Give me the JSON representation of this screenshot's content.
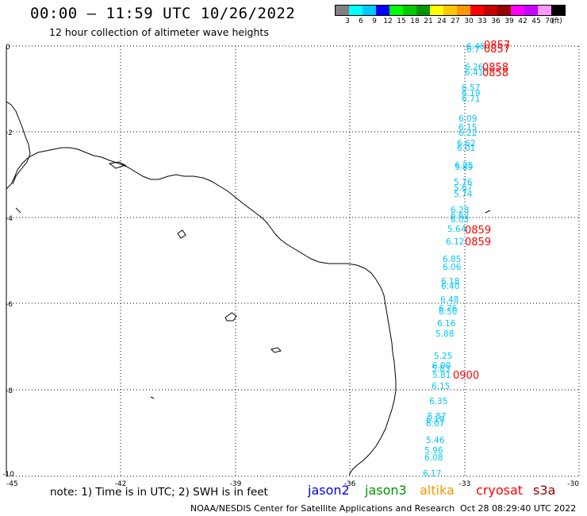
{
  "header": {
    "title": "00:00 – 11:59 UTC 10/26/2022",
    "subtitle": "12 hour collection of altimeter wave heights"
  },
  "legend": {
    "colors": [
      "#808080",
      "#00ffff",
      "#00c8ff",
      "#0000ff",
      "#00ff00",
      "#00c800",
      "#009600",
      "#ffff00",
      "#ffc800",
      "#ff9600",
      "#ff0000",
      "#c80000",
      "#960000",
      "#ff00ff",
      "#c800ff",
      "#ff96ff",
      "#000000"
    ],
    "labels": [
      "3",
      "6",
      "9",
      "12",
      "15",
      "18",
      "21",
      "24",
      "27",
      "30",
      "33",
      "36",
      "39",
      "42",
      "45",
      "70",
      "(ft)"
    ]
  },
  "axes": {
    "y_labels": [
      "0",
      "-2",
      "-4",
      "-6",
      "-8",
      "-10"
    ],
    "x_labels": [
      "-45",
      "-42",
      "-39",
      "-36",
      "-33",
      "-30"
    ]
  },
  "wave_heights": [
    {
      "value": "6.46",
      "color": "#00c8ff"
    },
    {
      "value": "6.7",
      "color": "#00c8ff"
    },
    {
      "value": "6.26",
      "color": "#00c8ff"
    },
    {
      "value": "6.41",
      "color": "#00c8ff"
    },
    {
      "value": "6.57",
      "color": "#00c8ff"
    },
    {
      "value": "6.19",
      "color": "#00c8ff"
    },
    {
      "value": "6.71",
      "color": "#00c8ff"
    },
    {
      "value": "6.09",
      "color": "#00c8ff"
    },
    {
      "value": "6.15",
      "color": "#00c8ff"
    },
    {
      "value": "6.22",
      "color": "#00c8ff"
    },
    {
      "value": "6.62",
      "color": "#00c8ff"
    },
    {
      "value": "6.01",
      "color": "#00c8ff"
    },
    {
      "value": "6.25",
      "color": "#00c8ff"
    },
    {
      "value": "5.89",
      "color": "#00c8ff"
    },
    {
      "value": "5.76",
      "color": "#00c8ff"
    },
    {
      "value": "5.67",
      "color": "#00c8ff"
    },
    {
      "value": "5.74",
      "color": "#00c8ff"
    },
    {
      "value": "6.28",
      "color": "#00c8ff"
    },
    {
      "value": "6.62",
      "color": "#00c8ff"
    },
    {
      "value": "6.03",
      "color": "#00c8ff"
    },
    {
      "value": "5.64",
      "color": "#00c8ff"
    },
    {
      "value": "6.12",
      "color": "#00c8ff"
    },
    {
      "value": "6.85",
      "color": "#00c8ff"
    },
    {
      "value": "6.06",
      "color": "#00c8ff"
    },
    {
      "value": "6.18",
      "color": "#00c8ff"
    },
    {
      "value": "6.40",
      "color": "#00c8ff"
    },
    {
      "value": "6.48",
      "color": "#00c8ff"
    },
    {
      "value": "6.76",
      "color": "#00c8ff"
    },
    {
      "value": "6.50",
      "color": "#00c8ff"
    },
    {
      "value": "6.16",
      "color": "#00c8ff"
    },
    {
      "value": "5.88",
      "color": "#00c8ff"
    },
    {
      "value": "5.25",
      "color": "#00c8ff"
    },
    {
      "value": "6.00",
      "color": "#00c8ff"
    },
    {
      "value": "5.83",
      "color": "#00c8ff"
    },
    {
      "value": "5.81",
      "color": "#00c8ff"
    },
    {
      "value": "6.15",
      "color": "#00c8ff"
    },
    {
      "value": "6.35",
      "color": "#00c8ff"
    },
    {
      "value": "5.87",
      "color": "#00c8ff"
    },
    {
      "value": "6.19",
      "color": "#00c8ff"
    },
    {
      "value": "6.07",
      "color": "#00c8ff"
    },
    {
      "value": "5.46",
      "color": "#00c8ff"
    },
    {
      "value": "5.96",
      "color": "#00c8ff"
    },
    {
      "value": "6.08",
      "color": "#00c8ff"
    },
    {
      "value": "6.17",
      "color": "#00c8ff"
    }
  ],
  "time_labels": [
    "0857",
    "0857",
    "0858",
    "0858",
    "0859",
    "0859",
    "0900"
  ],
  "footer": {
    "note": "note: 1) Time is in UTC; 2) SWH is in feet",
    "satellites": [
      {
        "name": "jason2",
        "color": "#0000ff"
      },
      {
        "name": "jason3",
        "color": "#009600"
      },
      {
        "name": "altika",
        "color": "#ff9600"
      },
      {
        "name": "cryosat",
        "color": "#ff0000"
      },
      {
        "name": "s3a",
        "color": "#960000"
      }
    ],
    "credit": "NOAA/NESDIS Center for Satellite Applications and Research",
    "timestamp": "Oct 28 08:29:40 UTC 2022"
  }
}
